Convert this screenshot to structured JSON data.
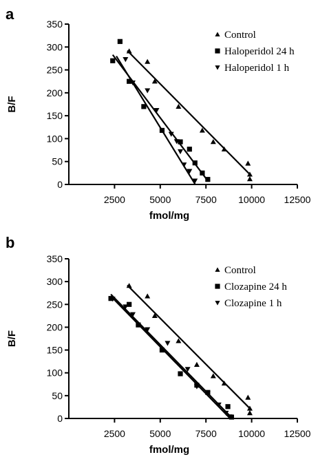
{
  "chart_data": [
    {
      "panel": "a",
      "type": "scatter",
      "xlabel": "fmol/mg",
      "ylabel": "B/F",
      "xlim": [
        0,
        12500
      ],
      "ylim": [
        0,
        350
      ],
      "xticks": [
        2500,
        5000,
        7500,
        10000,
        12500
      ],
      "yticks": [
        0,
        50,
        100,
        150,
        200,
        250,
        300,
        350
      ],
      "legend_placement": "top-right",
      "series": [
        {
          "name": "Control",
          "marker": "triangle-up",
          "points": [
            [
              3300,
              291
            ],
            [
              4300,
              268
            ],
            [
              4700,
              225
            ],
            [
              6000,
              170
            ],
            [
              7300,
              118
            ],
            [
              7900,
              93
            ],
            [
              8500,
              77
            ],
            [
              9800,
              46
            ],
            [
              9900,
              22
            ],
            [
              9900,
              12
            ]
          ],
          "fit": [
            [
              3200,
              292
            ],
            [
              10000,
              18
            ]
          ]
        },
        {
          "name": "Haloperidol 24 h",
          "marker": "square",
          "points": [
            [
              2400,
              270
            ],
            [
              2800,
              312
            ],
            [
              3300,
              225
            ],
            [
              4100,
              170
            ],
            [
              5100,
              118
            ],
            [
              6100,
              93
            ],
            [
              6600,
              77
            ],
            [
              6900,
              47
            ],
            [
              7300,
              25
            ],
            [
              7600,
              11
            ]
          ],
          "fit": [
            [
              2400,
              283
            ],
            [
              7600,
              8
            ]
          ]
        },
        {
          "name": "Haloperidol 1 h",
          "marker": "triangle-down",
          "points": [
            [
              3100,
              273
            ],
            [
              3500,
              222
            ],
            [
              4300,
              205
            ],
            [
              4800,
              162
            ],
            [
              5600,
              110
            ],
            [
              5900,
              94
            ],
            [
              6100,
              72
            ],
            [
              6300,
              43
            ],
            [
              6600,
              29
            ],
            [
              6900,
              8
            ]
          ],
          "fit": [
            [
              2600,
              280
            ],
            [
              6900,
              1
            ]
          ]
        }
      ]
    },
    {
      "panel": "b",
      "type": "scatter",
      "xlabel": "fmol/mg",
      "ylabel": "B/F",
      "xlim": [
        0,
        12500
      ],
      "ylim": [
        0,
        350
      ],
      "xticks": [
        2500,
        5000,
        7500,
        10000,
        12500
      ],
      "yticks": [
        0,
        50,
        100,
        150,
        200,
        250,
        300,
        350
      ],
      "legend_placement": "top-right",
      "series": [
        {
          "name": "Control",
          "marker": "triangle-up",
          "points": [
            [
              3300,
              291
            ],
            [
              4300,
              268
            ],
            [
              4700,
              225
            ],
            [
              6000,
              170
            ],
            [
              7000,
              118
            ],
            [
              7900,
              93
            ],
            [
              8500,
              77
            ],
            [
              9800,
              46
            ],
            [
              9900,
              22
            ],
            [
              9900,
              12
            ]
          ],
          "fit": [
            [
              3200,
              292
            ],
            [
              10000,
              18
            ]
          ]
        },
        {
          "name": "Clozapine 24 h",
          "marker": "square",
          "points": [
            [
              2300,
              263
            ],
            [
              3300,
              250
            ],
            [
              3800,
              205
            ],
            [
              5100,
              150
            ],
            [
              6100,
              98
            ],
            [
              7000,
              73
            ],
            [
              7600,
              57
            ],
            [
              8700,
              26
            ],
            [
              8900,
              3
            ]
          ],
          "fit": [
            [
              2300,
              272
            ],
            [
              8900,
              2
            ]
          ]
        },
        {
          "name": "Clozapine 1 h",
          "marker": "triangle-down",
          "points": [
            [
              2400,
              262
            ],
            [
              3100,
              245
            ],
            [
              3500,
              228
            ],
            [
              4300,
              195
            ],
            [
              5400,
              165
            ],
            [
              6500,
              108
            ],
            [
              7000,
              70
            ],
            [
              7600,
              55
            ],
            [
              8200,
              30
            ],
            [
              8600,
              12
            ],
            [
              8800,
              4
            ]
          ],
          "fit": [
            [
              2300,
              268
            ],
            [
              8800,
              1
            ]
          ]
        }
      ]
    }
  ]
}
